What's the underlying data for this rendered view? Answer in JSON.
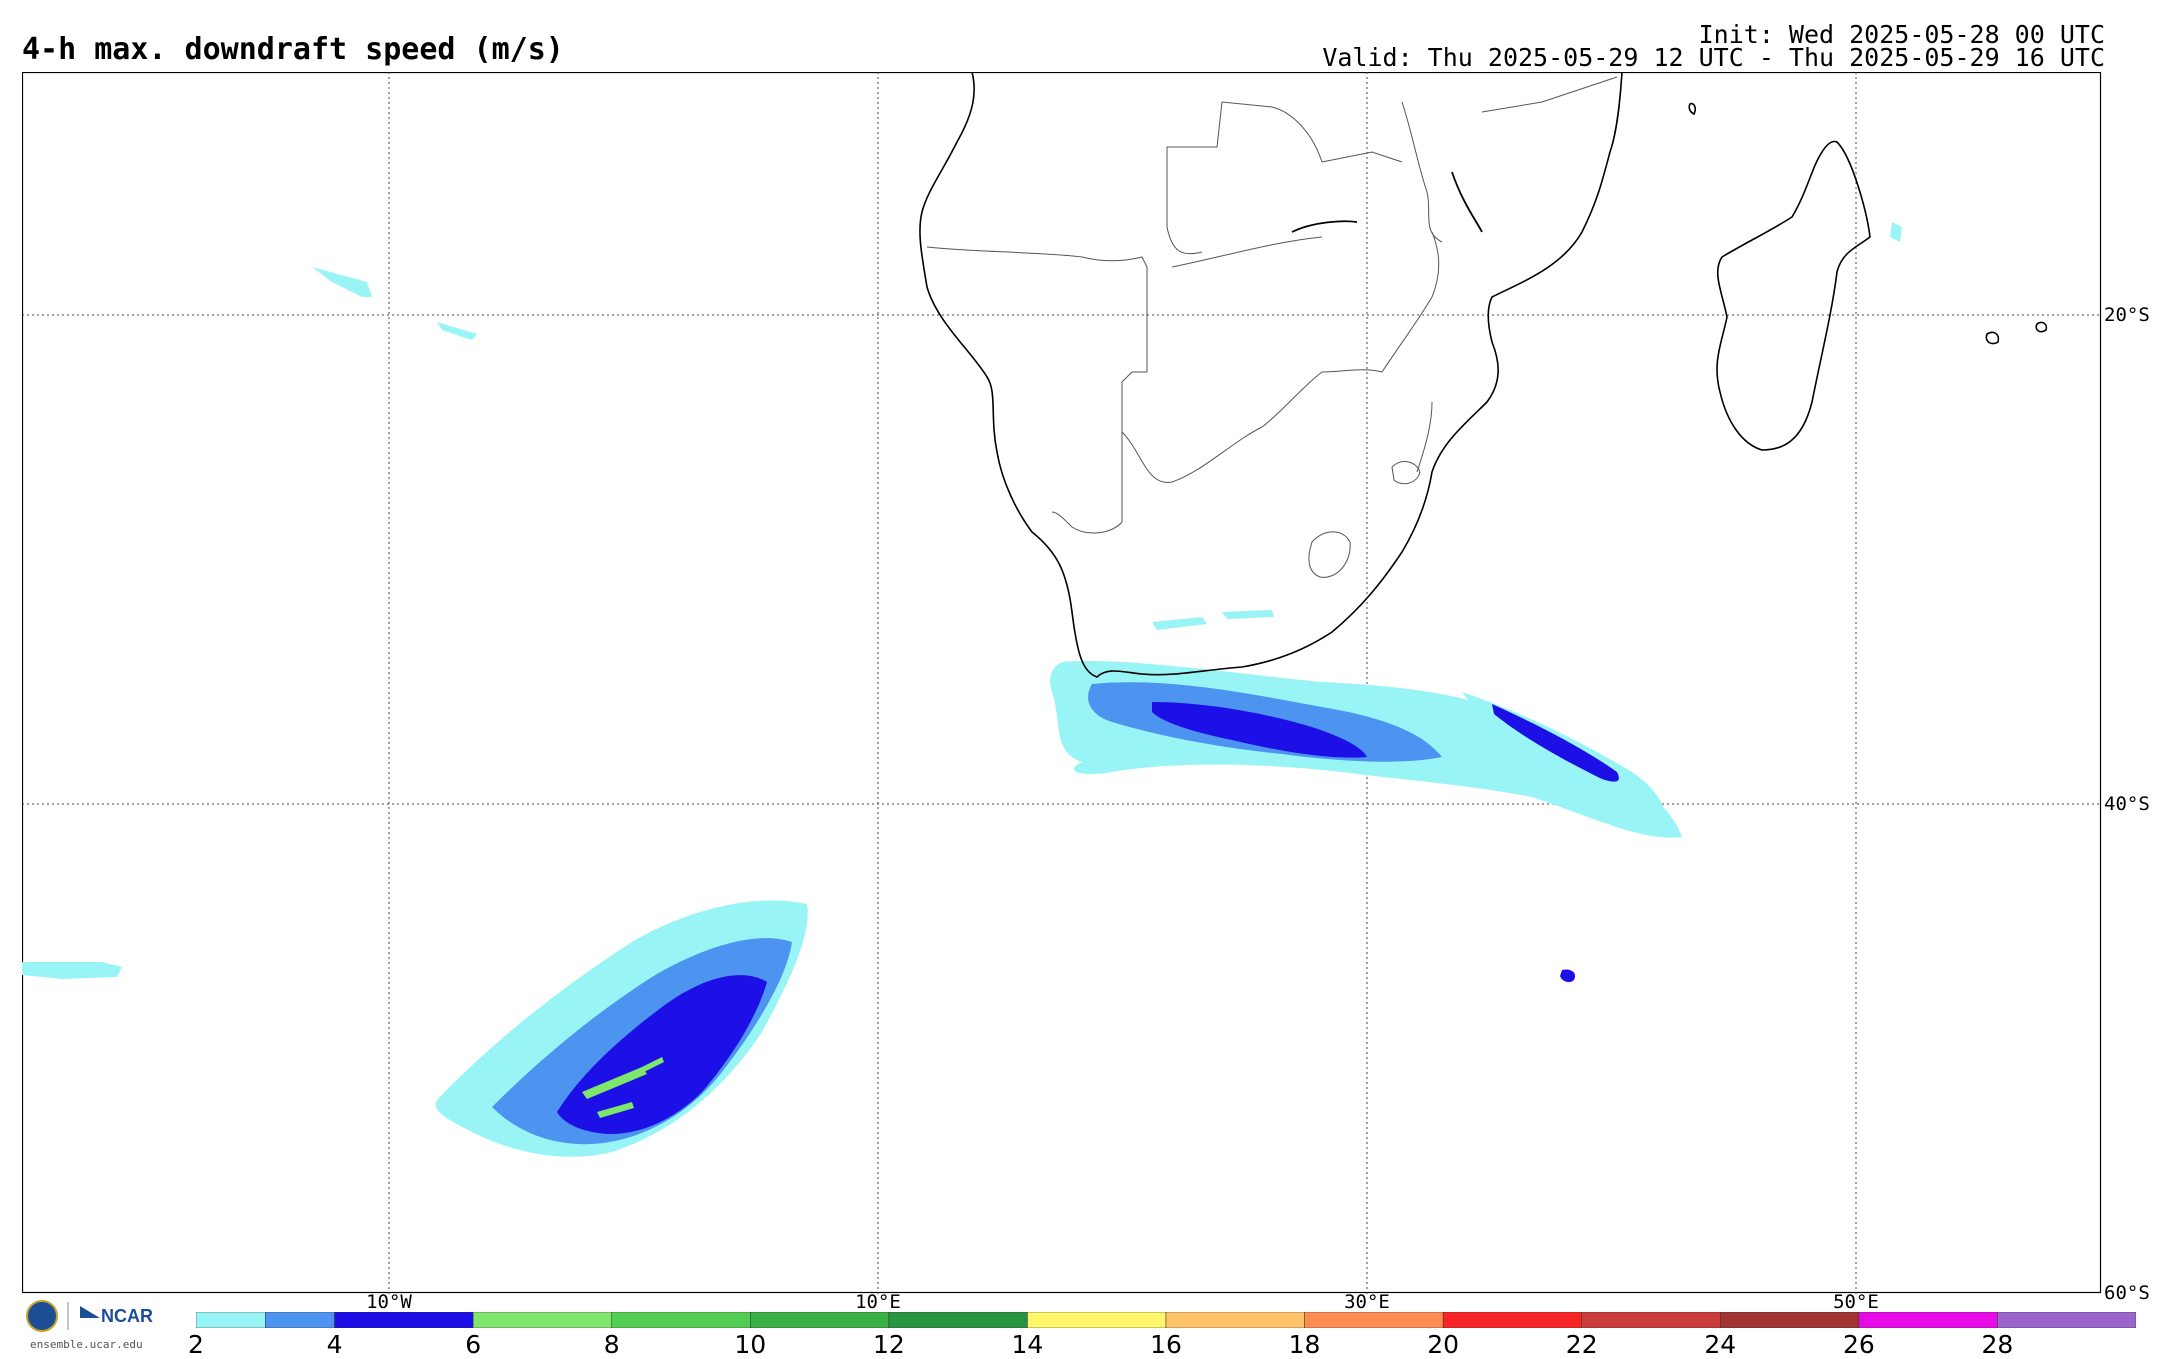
{
  "header": {
    "title": "4-h max. downdraft speed (m/s)",
    "init": "Init: Wed 2025-05-28 00 UTC",
    "valid": "Valid: Thu 2025-05-29 12 UTC - Thu 2025-05-29 16 UTC"
  },
  "map": {
    "lat_labels": [
      "20°S",
      "40°S",
      "60°S"
    ],
    "lon_labels": [
      "10°W",
      "10°E",
      "30°E",
      "50°E"
    ],
    "land_color": "#ffffff",
    "grid_style": "dotted"
  },
  "colorbar": {
    "ticks": [
      "2",
      "4",
      "6",
      "8",
      "10",
      "12",
      "14",
      "16",
      "18",
      "20",
      "22",
      "24",
      "26",
      "28"
    ],
    "bins": [
      {
        "from": 2,
        "to": 3,
        "color": "#99f5f5"
      },
      {
        "from": 3,
        "to": 4,
        "color": "#4d94f0"
      },
      {
        "from": 4,
        "to": 6,
        "color": "#1c10e6"
      },
      {
        "from": 6,
        "to": 8,
        "color": "#7de66b"
      },
      {
        "from": 8,
        "to": 10,
        "color": "#53cc52"
      },
      {
        "from": 10,
        "to": 12,
        "color": "#38b043"
      },
      {
        "from": 12,
        "to": 14,
        "color": "#269440"
      },
      {
        "from": 14,
        "to": 16,
        "color": "#fff66b"
      },
      {
        "from": 16,
        "to": 18,
        "color": "#ffc46b"
      },
      {
        "from": 18,
        "to": 20,
        "color": "#ff8b52"
      },
      {
        "from": 20,
        "to": 22,
        "color": "#f52525"
      },
      {
        "from": 22,
        "to": 24,
        "color": "#cc3c3c"
      },
      {
        "from": 24,
        "to": 26,
        "color": "#a33333"
      },
      {
        "from": 26,
        "to": 28,
        "color": "#e60ae6"
      },
      {
        "from": 28,
        "to": 30,
        "color": "#9a66cc"
      }
    ]
  },
  "footer": {
    "org": "NCAR",
    "site": "ensemble.ucar.edu"
  }
}
